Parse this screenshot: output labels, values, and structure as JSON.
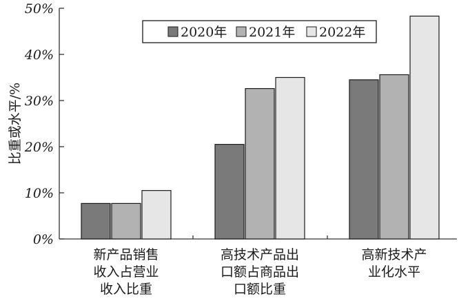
{
  "chart_data": {
    "type": "bar",
    "ylabel": "比重或水平/%",
    "ylim": [
      0,
      50
    ],
    "yticks": [
      0,
      10,
      20,
      30,
      40,
      50
    ],
    "ytick_labels": [
      "0%",
      "10%",
      "20%",
      "30%",
      "40%",
      "50%"
    ],
    "categories": [
      [
        "新产品销售",
        "收入占营业",
        "收入比重"
      ],
      [
        "高技术产品出",
        "口额占商品出",
        "口额比重"
      ],
      [
        "高新技术产",
        "业化水平"
      ]
    ],
    "series": [
      {
        "name": "2020年",
        "color": "#7a7a7a",
        "values": [
          7.7,
          20.5,
          34.5
        ]
      },
      {
        "name": "2021年",
        "color": "#b2b2b2",
        "values": [
          7.7,
          32.6,
          35.6
        ]
      },
      {
        "name": "2022年",
        "color": "#e6e6e6",
        "values": [
          10.5,
          35.0,
          48.3
        ]
      }
    ],
    "legend_position": "top-right",
    "grid": false
  }
}
